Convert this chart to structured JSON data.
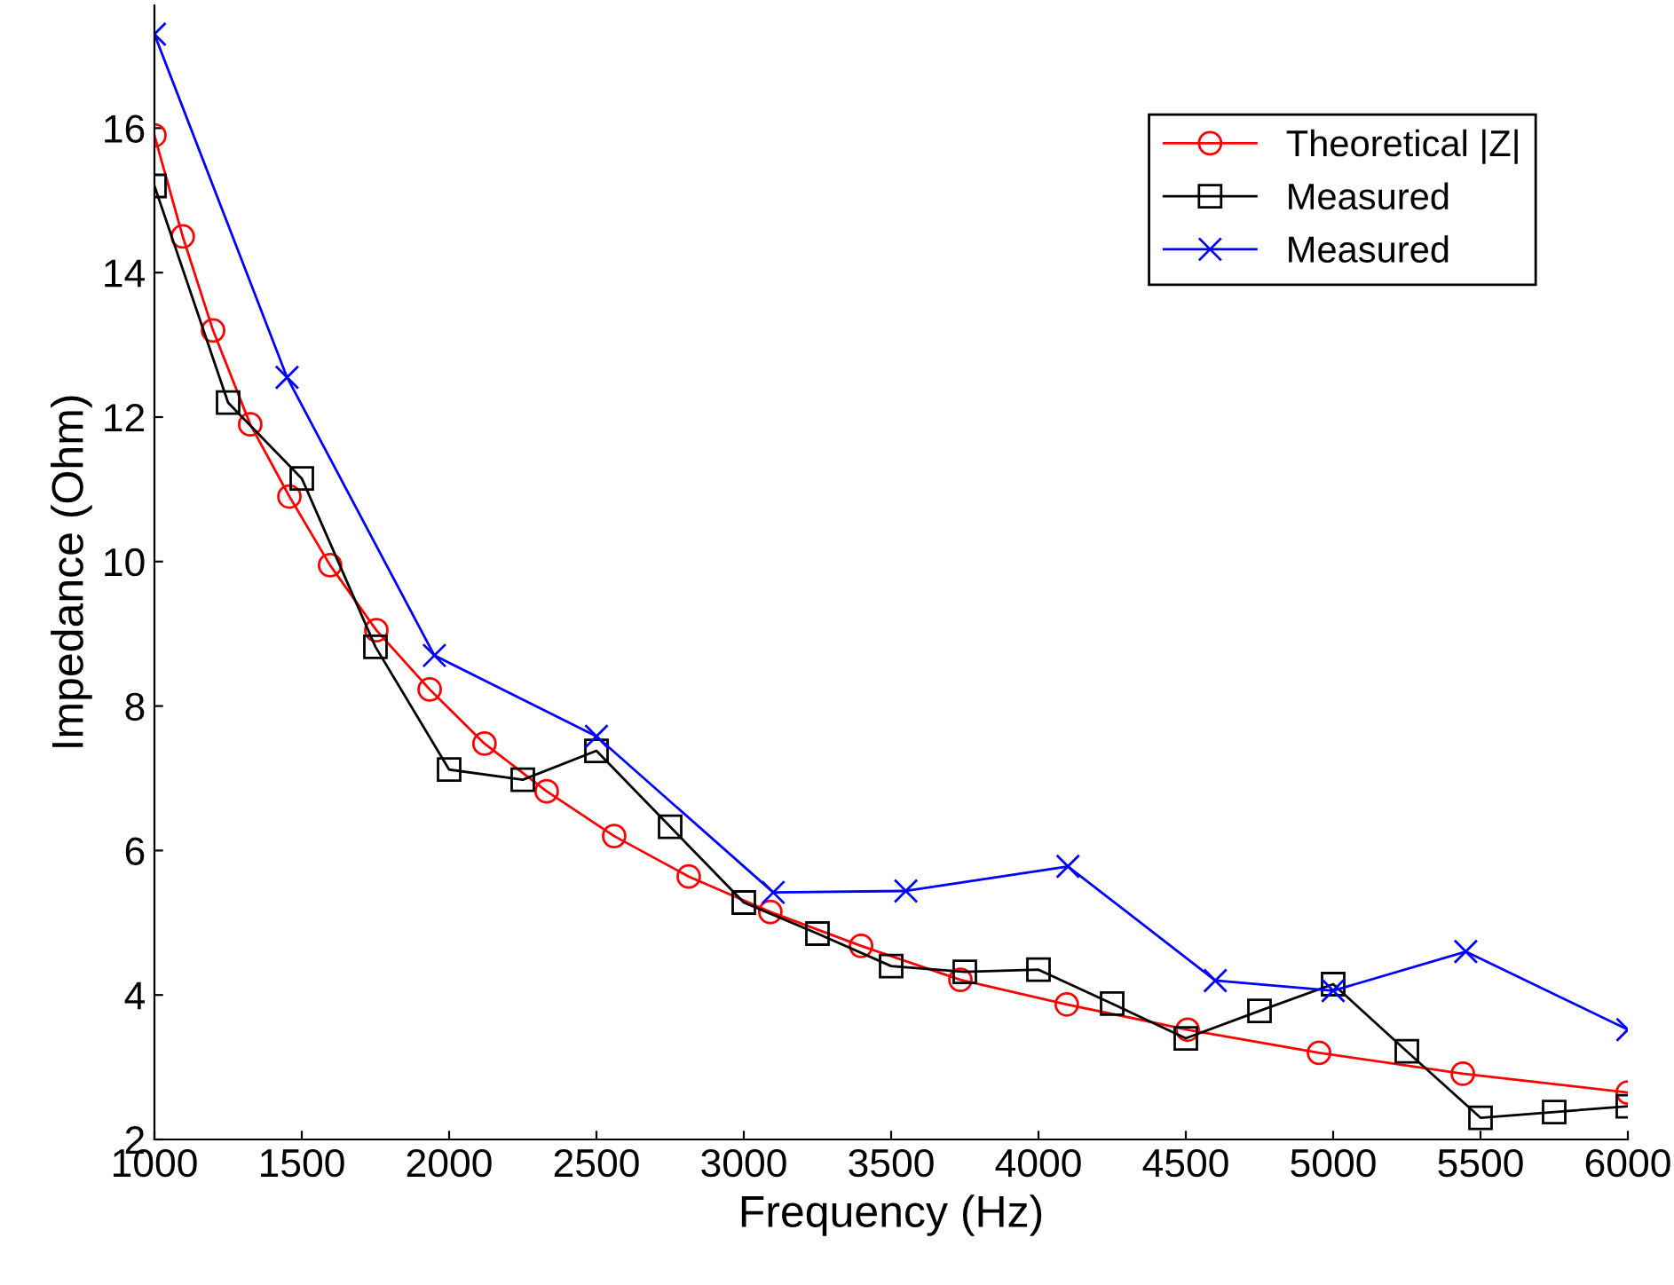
{
  "chart_data": {
    "type": "line",
    "xlabel": "Frequency (Hz)",
    "ylabel": "Impedance (Ohm)",
    "xlim": [
      1000,
      6000
    ],
    "xticks": [
      1000,
      1500,
      2000,
      2500,
      3000,
      3500,
      4000,
      4500,
      5000,
      5500,
      6000
    ],
    "ylim": [
      2,
      17.7
    ],
    "yticks": [
      2,
      4,
      6,
      8,
      10,
      12,
      14,
      16
    ],
    "grid": false,
    "legend": "top right",
    "series": [
      {
        "name": "Theoretical |Z|",
        "color": "#ff0000",
        "marker": "circle",
        "x": [
          1000,
          1096,
          1199,
          1325,
          1458,
          1596,
          1753,
          1934,
          2120,
          2331,
          2560,
          2813,
          3090,
          3398,
          3735,
          4096,
          4506,
          4952,
          5440,
          6000
        ],
        "values": [
          15.9,
          14.5,
          13.2,
          11.9,
          10.9,
          9.95,
          9.05,
          8.23,
          7.48,
          6.82,
          6.2,
          5.64,
          5.15,
          4.68,
          4.21,
          3.87,
          3.52,
          3.2,
          2.91,
          2.65
        ]
      },
      {
        "name": "Measured",
        "color": "#000000",
        "marker": "square",
        "x": [
          1000,
          1250,
          1500,
          1750,
          2000,
          2250,
          2500,
          2750,
          3000,
          3250,
          3500,
          3750,
          4000,
          4250,
          4500,
          4750,
          5000,
          5250,
          5500,
          5750,
          6000
        ],
        "values": [
          15.2,
          12.2,
          11.15,
          8.82,
          7.12,
          6.98,
          7.38,
          6.33,
          5.28,
          4.85,
          4.4,
          4.32,
          4.35,
          3.88,
          3.4,
          3.78,
          4.15,
          3.22,
          2.3,
          2.38,
          2.46
        ]
      },
      {
        "name": "Measured",
        "color": "#0000ff",
        "marker": "cross",
        "x": [
          1000,
          1450,
          1950,
          2500,
          3100,
          3550,
          4100,
          4600,
          5000,
          5450,
          6000
        ],
        "values": [
          17.3,
          12.55,
          8.7,
          7.58,
          5.42,
          5.44,
          5.78,
          4.2,
          4.06,
          4.6,
          3.52
        ]
      }
    ]
  }
}
